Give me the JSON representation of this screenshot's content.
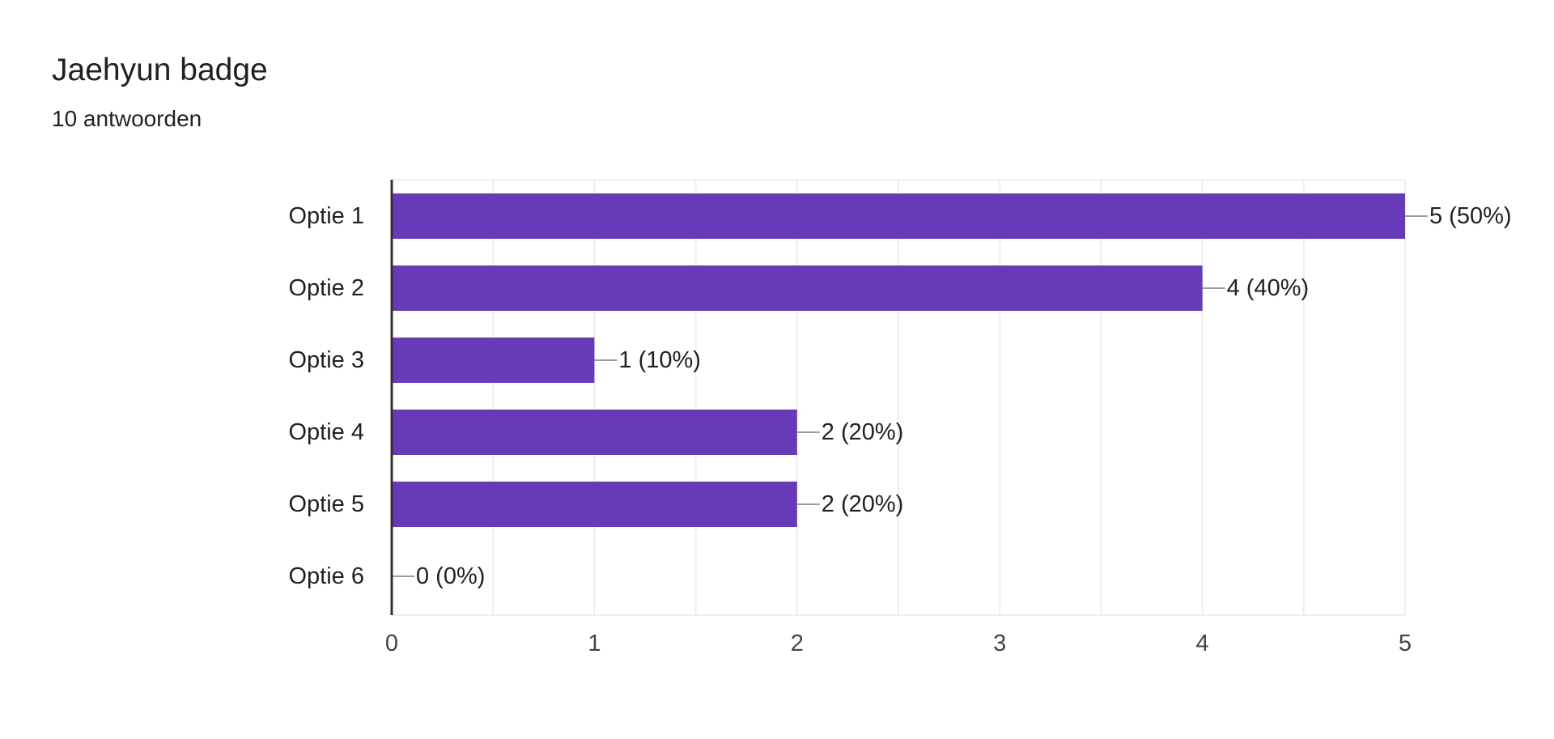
{
  "question": {
    "title": "Jaehyun badge",
    "response_count": "10 antwoorden"
  },
  "colors": {
    "bar": "#673ab7",
    "gridline": "#eeeeee",
    "axis": "#333333",
    "leader": "#9e9e9e",
    "text": "#202124",
    "tick_text": "#444444"
  },
  "chart_data": {
    "type": "bar",
    "orientation": "horizontal",
    "categories": [
      "Optie 1",
      "Optie 2",
      "Optie 3",
      "Optie 4",
      "Optie 5",
      "Optie 6"
    ],
    "values": [
      5,
      4,
      1,
      2,
      2,
      0
    ],
    "data_labels": [
      "5 (50%)",
      "4 (40%)",
      "1 (10%)",
      "2 (20%)",
      "2 (20%)",
      "0 (0%)"
    ],
    "xlim": [
      0,
      5
    ],
    "xticks": [
      0,
      1,
      2,
      3,
      4,
      5
    ],
    "minor_grid_step": 0.5,
    "grid": true,
    "legend": "none",
    "title": "",
    "xlabel": "",
    "ylabel": ""
  }
}
